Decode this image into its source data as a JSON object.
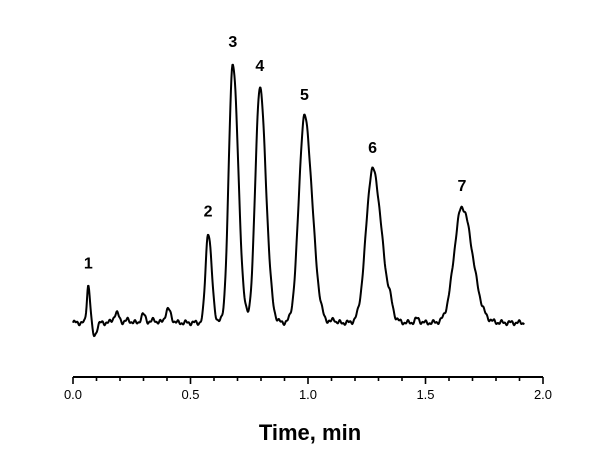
{
  "chart_data": {
    "type": "line",
    "title": "",
    "xlabel": "Time, min",
    "ylabel": "",
    "xlim": [
      0.0,
      2.0
    ],
    "ylim": [
      0,
      1
    ],
    "x_ticks": [
      "0.0",
      "0.5",
      "1.0",
      "1.5",
      "2.0"
    ],
    "y_axis_visible": false,
    "grid": false,
    "x_range_of_trace": [
      0.0,
      1.92
    ],
    "baseline": 0.02,
    "peaks": [
      {
        "label": "1",
        "x": 0.065,
        "height": 0.165
      },
      {
        "label": "2",
        "x": 0.575,
        "height": 0.36
      },
      {
        "label": "3",
        "x": 0.68,
        "height": 1.0
      },
      {
        "label": "4",
        "x": 0.795,
        "height": 0.91
      },
      {
        "label": "5",
        "x": 0.985,
        "height": 0.8
      },
      {
        "label": "6",
        "x": 1.275,
        "height": 0.6
      },
      {
        "label": "7",
        "x": 1.655,
        "height": 0.456
      }
    ]
  }
}
